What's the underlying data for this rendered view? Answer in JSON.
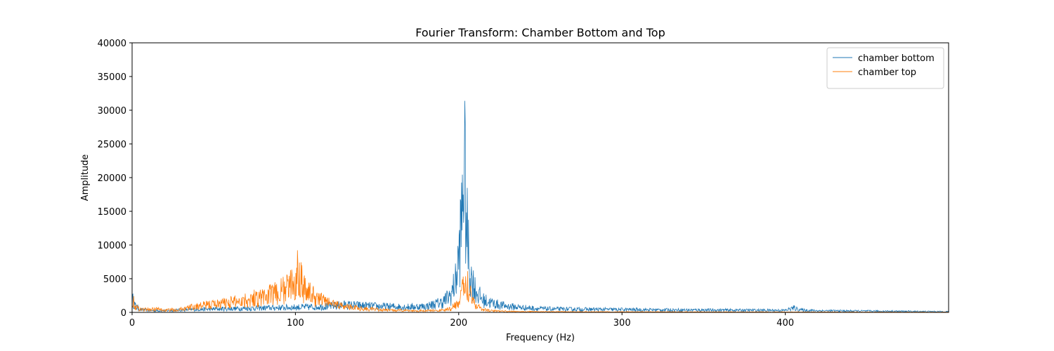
{
  "chart_data": {
    "type": "line",
    "title": "Fourier Transform: Chamber Bottom and Top",
    "xlabel": "Frequency (Hz)",
    "ylabel": "Amplitude",
    "xlim": [
      0,
      500
    ],
    "ylim": [
      0,
      40000
    ],
    "xticks": [
      0,
      100,
      200,
      300,
      400
    ],
    "yticks": [
      0,
      5000,
      10000,
      15000,
      20000,
      25000,
      30000,
      35000,
      40000
    ],
    "grid": false,
    "legend_position": "top-right",
    "series": [
      {
        "name": "chamber bottom",
        "color": "#1f77b4",
        "x": [
          0,
          2,
          5,
          10,
          20,
          30,
          40,
          50,
          60,
          70,
          80,
          90,
          100,
          110,
          120,
          130,
          140,
          150,
          160,
          170,
          180,
          190,
          195,
          198,
          200,
          202,
          203,
          204,
          205,
          206,
          207,
          208,
          210,
          212,
          215,
          220,
          225,
          230,
          240,
          250,
          260,
          280,
          300,
          320,
          350,
          380,
          400,
          405,
          410,
          420,
          450,
          480,
          500
        ],
        "y": [
          2000,
          900,
          400,
          300,
          250,
          350,
          450,
          500,
          550,
          600,
          650,
          700,
          750,
          800,
          900,
          1100,
          1000,
          900,
          850,
          800,
          900,
          1500,
          2500,
          4500,
          8000,
          14000,
          22000,
          18500,
          12000,
          9000,
          5500,
          5000,
          3500,
          2600,
          1800,
          1400,
          1100,
          900,
          700,
          550,
          500,
          450,
          420,
          380,
          350,
          320,
          300,
          650,
          350,
          250,
          200,
          150,
          120
        ]
      },
      {
        "name": "chamber top",
        "color": "#ff7f0e",
        "x": [
          0,
          2,
          5,
          10,
          15,
          20,
          30,
          40,
          50,
          60,
          70,
          80,
          90,
          95,
          100,
          102,
          105,
          110,
          120,
          130,
          140,
          150,
          160,
          170,
          180,
          190,
          195,
          200,
          203,
          205,
          207,
          210,
          215,
          220,
          230,
          250,
          300,
          350,
          400,
          450,
          500
        ],
        "y": [
          2200,
          800,
          500,
          400,
          500,
          300,
          500,
          900,
          1200,
          1500,
          1900,
          2300,
          2900,
          3600,
          4500,
          6600,
          3800,
          2500,
          1500,
          900,
          600,
          400,
          300,
          250,
          250,
          300,
          500,
          1500,
          3500,
          5000,
          3000,
          1200,
          400,
          250,
          150,
          100,
          80,
          70,
          60,
          50,
          40
        ]
      }
    ]
  }
}
